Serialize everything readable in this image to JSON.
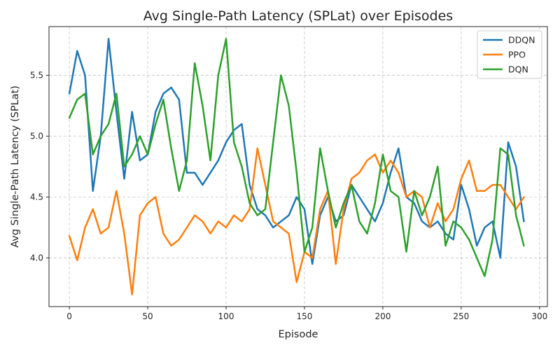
{
  "chart_data": {
    "type": "line",
    "title": "Avg Single-Path Latency (SPLat) over Episodes",
    "xlabel": "Episode",
    "ylabel": "Avg Single-Path Latency (SPLat)",
    "xlim": [
      -13,
      305
    ],
    "ylim": [
      3.6,
      5.9
    ],
    "xticks": [
      0,
      50,
      100,
      150,
      200,
      250,
      300
    ],
    "yticks": [
      4.0,
      4.5,
      5.0,
      5.5
    ],
    "ytick_labels": [
      "4.0",
      "4.5",
      "5.0",
      "5.5"
    ],
    "grid": true,
    "legend_position": "top-right",
    "x": [
      0,
      5,
      10,
      15,
      20,
      25,
      30,
      35,
      40,
      45,
      50,
      55,
      60,
      65,
      70,
      75,
      80,
      85,
      90,
      95,
      100,
      105,
      110,
      115,
      120,
      125,
      130,
      135,
      140,
      145,
      150,
      155,
      160,
      165,
      170,
      175,
      180,
      185,
      190,
      195,
      200,
      205,
      210,
      215,
      220,
      225,
      230,
      235,
      240,
      245,
      250,
      255,
      260,
      265,
      270,
      275,
      280,
      285,
      290
    ],
    "series": [
      {
        "name": "DDQN",
        "color": "#1f77b4",
        "values": [
          5.35,
          5.7,
          5.5,
          4.55,
          5.0,
          5.8,
          5.2,
          4.65,
          5.2,
          4.8,
          4.85,
          5.2,
          5.35,
          5.4,
          5.3,
          4.7,
          4.7,
          4.6,
          4.7,
          4.8,
          4.95,
          5.05,
          5.1,
          4.6,
          4.4,
          4.35,
          4.25,
          4.3,
          4.35,
          4.5,
          4.4,
          3.95,
          4.35,
          4.5,
          4.3,
          4.35,
          4.6,
          4.5,
          4.4,
          4.3,
          4.45,
          4.7,
          4.9,
          4.5,
          4.45,
          4.3,
          4.25,
          4.3,
          4.2,
          4.15,
          4.6,
          4.4,
          4.1,
          4.25,
          4.3,
          4.0,
          4.95,
          4.75,
          4.3
        ]
      },
      {
        "name": "PPO",
        "color": "#ff7f0e",
        "values": [
          4.18,
          3.98,
          4.25,
          4.4,
          4.2,
          4.25,
          4.55,
          4.2,
          3.7,
          4.35,
          4.45,
          4.5,
          4.2,
          4.1,
          4.15,
          4.25,
          4.35,
          4.3,
          4.2,
          4.3,
          4.25,
          4.35,
          4.3,
          4.4,
          4.9,
          4.6,
          4.3,
          4.25,
          4.2,
          3.8,
          4.05,
          4.0,
          4.4,
          4.55,
          3.95,
          4.4,
          4.65,
          4.7,
          4.8,
          4.85,
          4.7,
          4.8,
          4.7,
          4.5,
          4.55,
          4.5,
          4.25,
          4.45,
          4.3,
          4.4,
          4.65,
          4.8,
          4.55,
          4.55,
          4.6,
          4.6,
          4.5,
          4.4,
          4.5
        ]
      },
      {
        "name": "DQN",
        "color": "#2ca02c",
        "values": [
          5.15,
          5.3,
          5.35,
          4.85,
          5.0,
          5.1,
          5.35,
          4.75,
          4.85,
          5.0,
          4.85,
          5.1,
          5.3,
          4.9,
          4.55,
          4.8,
          5.6,
          5.25,
          4.8,
          5.5,
          5.8,
          4.95,
          4.75,
          4.45,
          4.35,
          4.4,
          4.95,
          5.5,
          5.25,
          4.7,
          4.05,
          4.25,
          4.9,
          4.55,
          4.25,
          4.45,
          4.6,
          4.3,
          4.2,
          4.45,
          4.85,
          4.55,
          4.5,
          4.05,
          4.55,
          4.35,
          4.5,
          4.75,
          4.1,
          4.3,
          4.25,
          4.15,
          4.0,
          3.85,
          4.15,
          4.9,
          4.85,
          4.35,
          4.1
        ]
      }
    ]
  }
}
